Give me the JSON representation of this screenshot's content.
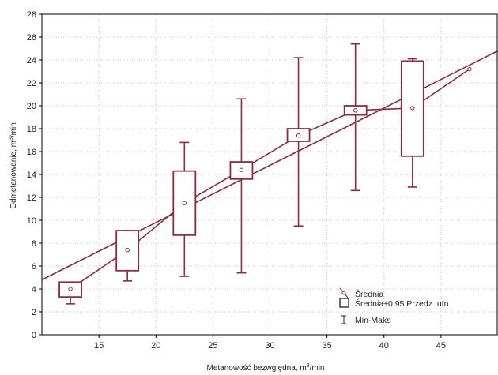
{
  "chart_data": {
    "type": "box",
    "xlabel_main": "Metanowość bezwględna, m",
    "xlabel_sup": "3",
    "xlabel_unit": "/min",
    "ylabel_main": "Odmetanowanie, m",
    "ylabel_sup": "3",
    "ylabel_unit": "/min",
    "xlim": [
      10,
      50
    ],
    "ylim": [
      0,
      28
    ],
    "x_ticks": [
      15,
      20,
      25,
      30,
      35,
      40,
      45
    ],
    "y_ticks": [
      0,
      2,
      4,
      6,
      8,
      10,
      12,
      14,
      16,
      18,
      20,
      22,
      24,
      26,
      28
    ],
    "grid": true,
    "colors": {
      "series": "#8b2d3c",
      "grid": "#c8c8c8",
      "axis": "#000000"
    },
    "series": [
      {
        "x": 12.5,
        "mean": 4.0,
        "ci_low": 3.3,
        "ci_high": 4.6,
        "min": 2.7,
        "max": 3.3
      },
      {
        "x": 17.5,
        "mean": 7.4,
        "ci_low": 5.6,
        "ci_high": 9.1,
        "min": 4.7,
        "max": 9.1
      },
      {
        "x": 22.5,
        "mean": 11.5,
        "ci_low": 8.7,
        "ci_high": 14.3,
        "min": 5.1,
        "max": 16.8
      },
      {
        "x": 27.5,
        "mean": 14.4,
        "ci_low": 13.6,
        "ci_high": 15.1,
        "min": 5.4,
        "max": 20.6
      },
      {
        "x": 32.5,
        "mean": 17.4,
        "ci_low": 16.9,
        "ci_high": 18.0,
        "min": 9.5,
        "max": 24.2
      },
      {
        "x": 37.5,
        "mean": 19.6,
        "ci_low": 19.2,
        "ci_high": 20.0,
        "min": 12.6,
        "max": 25.4
      },
      {
        "x": 42.5,
        "mean": 19.8,
        "ci_low": 15.6,
        "ci_high": 23.9,
        "min": 12.9,
        "max": 24.1
      }
    ],
    "mean_line_extra_point": {
      "x": 47.5,
      "y": 23.2
    },
    "trend_line": {
      "x1": 10,
      "y1": 4.8,
      "x2": 50,
      "y2": 24.8
    },
    "legend": {
      "position": "bottom-right",
      "items": [
        "Średnia",
        "Średnia±0,95 Przedz. ufn.",
        "Min-Maks"
      ]
    }
  }
}
